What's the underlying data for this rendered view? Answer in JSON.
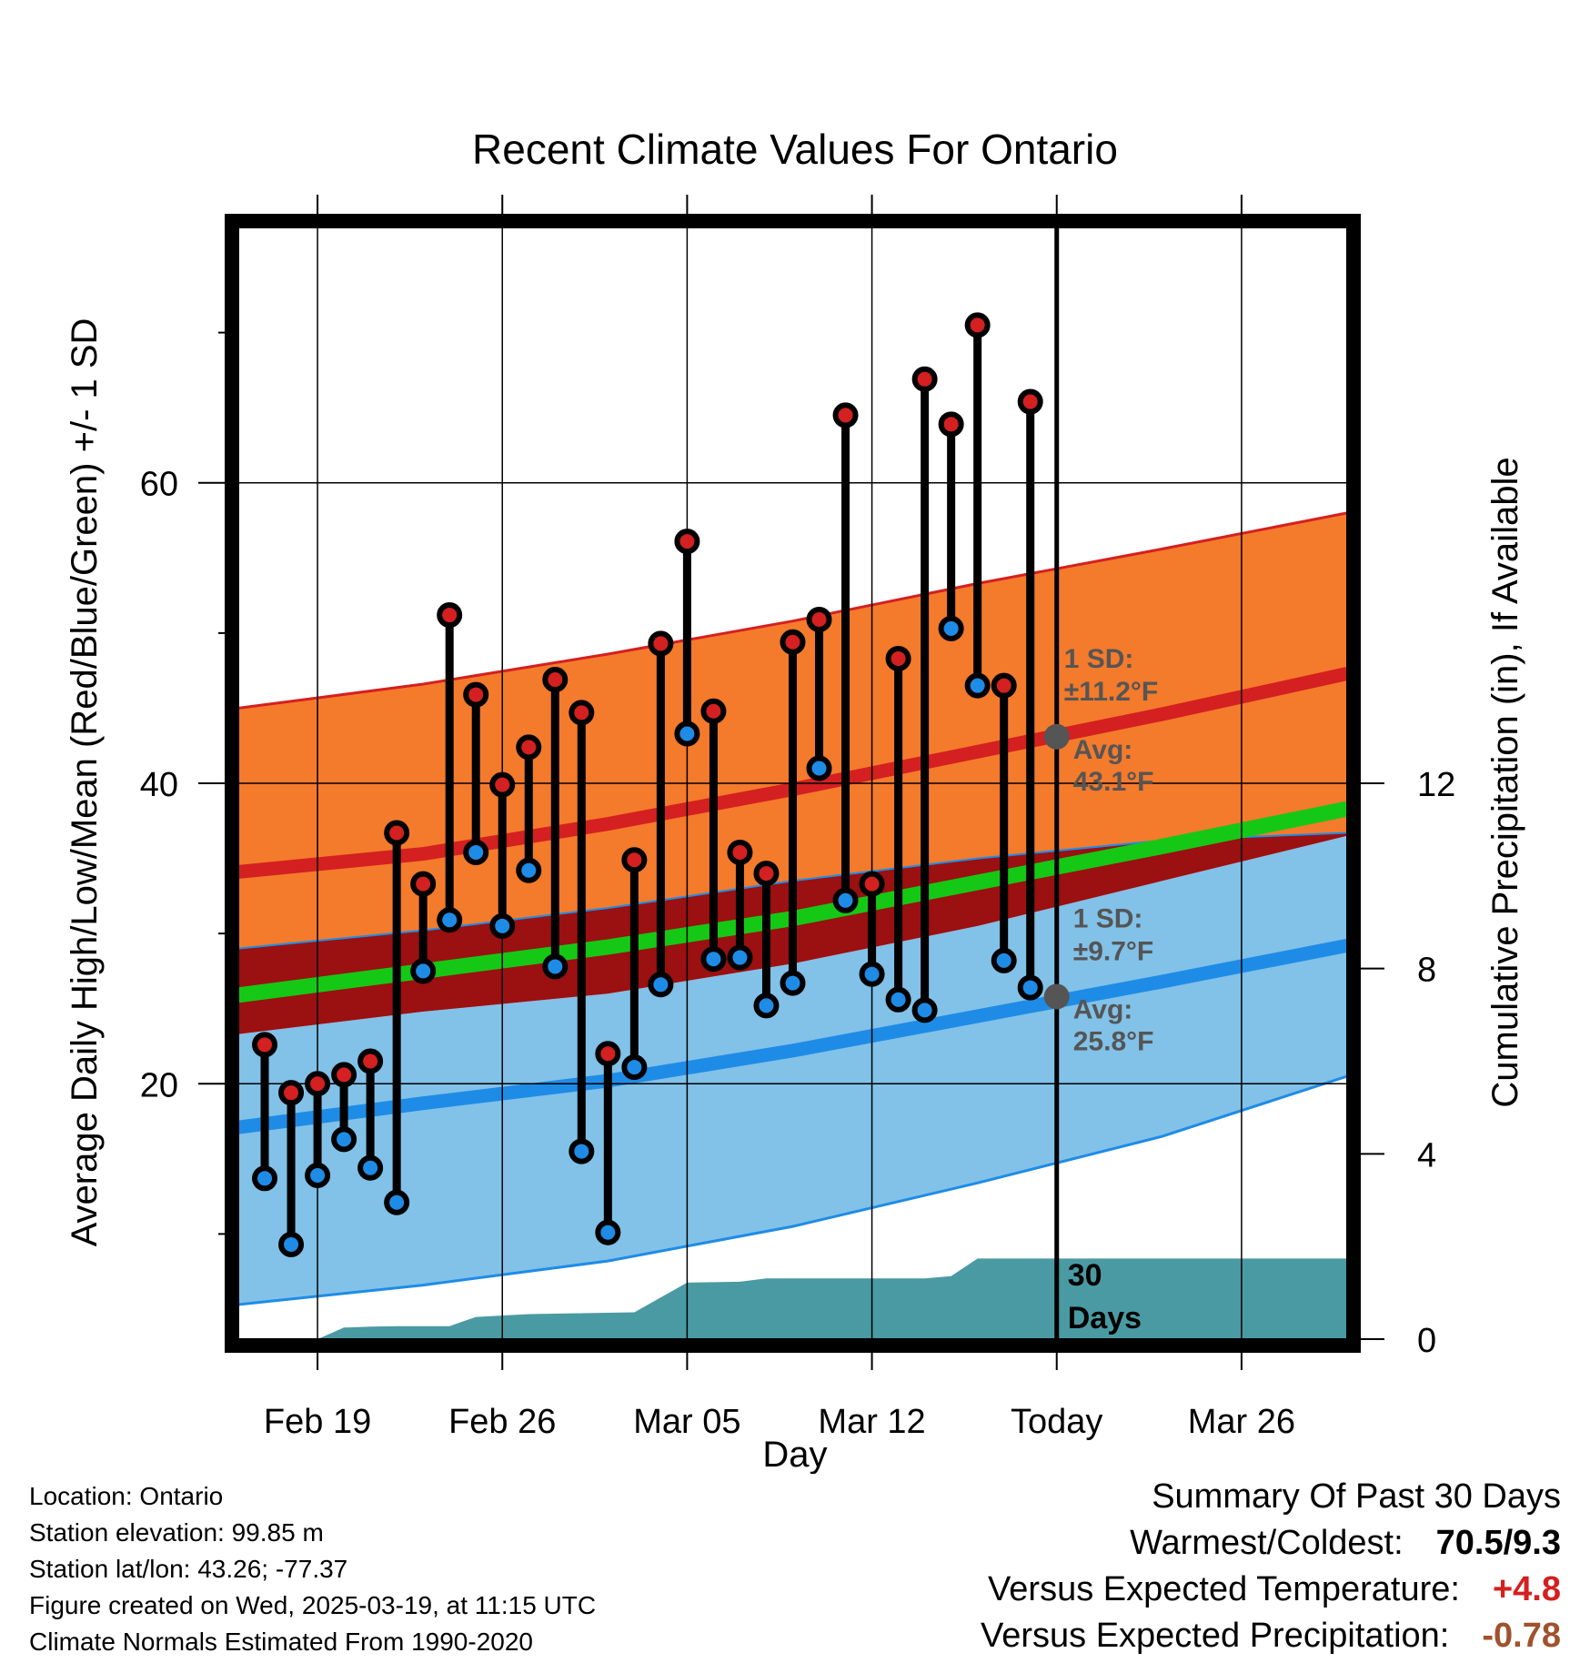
{
  "title": "Recent Climate Values For Ontario",
  "chart_data": {
    "type": "line",
    "title": "Recent Climate Values For Ontario",
    "xlabel": "Day",
    "ylabel": "Average Daily High/Low/Mean (Red/Blue/Green) +/- 1 SD",
    "y2label": "Cumulative Precipitation (in), If Available",
    "x_range": [
      "2025-02-16",
      "2025-03-30"
    ],
    "ylim": [
      3,
      77
    ],
    "y2lim": [
      0,
      24
    ],
    "x_tick_labels": [
      "Feb 19",
      "Feb 26",
      "Mar 05",
      "Mar 12",
      "Today",
      "Mar 26"
    ],
    "x_tick_dates": [
      "2025-02-19",
      "2025-02-26",
      "2025-03-05",
      "2025-03-12",
      "2025-03-19",
      "2025-03-26"
    ],
    "y_ticks": [
      20,
      40,
      60
    ],
    "y_minor_ticks": [
      10,
      30,
      50,
      70
    ],
    "y2_ticks": [
      0,
      4,
      8,
      12
    ],
    "grid": true,
    "today": "2025-03-19",
    "normals": {
      "dates": [
        "2025-02-16",
        "2025-02-23",
        "2025-03-02",
        "2025-03-09",
        "2025-03-16",
        "2025-03-23",
        "2025-03-30"
      ],
      "high_mean": [
        34.1,
        35.3,
        37.3,
        39.6,
        42.1,
        44.6,
        47.3
      ],
      "high_upper": [
        45.0,
        46.6,
        48.6,
        50.8,
        53.3,
        55.6,
        58.0
      ],
      "high_lower": [
        29.0,
        30.2,
        31.7,
        33.5,
        35.0,
        36.2,
        36.7
      ],
      "mean": [
        25.9,
        27.5,
        29.1,
        31.0,
        33.4,
        35.8,
        38.3
      ],
      "mean_band_upper": [
        29.0,
        30.2,
        31.7,
        33.5,
        35.0,
        36.2,
        36.7
      ],
      "mean_band_lower": [
        23.3,
        24.8,
        26.0,
        28.0,
        30.5,
        33.5,
        36.5
      ],
      "low_mean": [
        17.1,
        18.7,
        20.2,
        22.2,
        24.5,
        26.8,
        29.2
      ],
      "low_upper": [
        23.3,
        24.8,
        26.0,
        28.0,
        30.5,
        33.5,
        36.5
      ],
      "low_lower": [
        5.3,
        6.6,
        8.2,
        10.5,
        13.4,
        16.5,
        20.5
      ]
    },
    "series": [
      {
        "name": "High",
        "color": "#d42020",
        "dates": [
          "2025-02-17",
          "2025-02-18",
          "2025-02-19",
          "2025-02-20",
          "2025-02-21",
          "2025-02-22",
          "2025-02-23",
          "2025-02-24",
          "2025-02-25",
          "2025-02-26",
          "2025-02-27",
          "2025-02-28",
          "2025-03-01",
          "2025-03-02",
          "2025-03-03",
          "2025-03-04",
          "2025-03-05",
          "2025-03-06",
          "2025-03-07",
          "2025-03-08",
          "2025-03-09",
          "2025-03-10",
          "2025-03-11",
          "2025-03-12",
          "2025-03-13",
          "2025-03-14",
          "2025-03-15",
          "2025-03-16",
          "2025-03-17",
          "2025-03-18"
        ],
        "values": [
          22.6,
          19.4,
          20.0,
          20.6,
          21.5,
          36.7,
          33.3,
          51.2,
          45.9,
          39.9,
          42.4,
          46.9,
          44.7,
          22.0,
          34.9,
          49.3,
          56.1,
          44.8,
          35.4,
          34.0,
          49.4,
          50.9,
          64.5,
          33.3,
          48.3,
          66.9,
          63.9,
          70.5,
          46.5,
          65.4
        ]
      },
      {
        "name": "Low",
        "color": "#1e8ce6",
        "dates": [
          "2025-02-17",
          "2025-02-18",
          "2025-02-19",
          "2025-02-20",
          "2025-02-21",
          "2025-02-22",
          "2025-02-23",
          "2025-02-24",
          "2025-02-25",
          "2025-02-26",
          "2025-02-27",
          "2025-02-28",
          "2025-03-01",
          "2025-03-02",
          "2025-03-03",
          "2025-03-04",
          "2025-03-05",
          "2025-03-06",
          "2025-03-07",
          "2025-03-08",
          "2025-03-09",
          "2025-03-10",
          "2025-03-11",
          "2025-03-12",
          "2025-03-13",
          "2025-03-14",
          "2025-03-15",
          "2025-03-16",
          "2025-03-17",
          "2025-03-18"
        ],
        "values": [
          13.7,
          9.3,
          13.9,
          16.3,
          14.4,
          12.1,
          27.5,
          30.9,
          35.4,
          30.5,
          34.2,
          27.8,
          15.5,
          10.1,
          21.1,
          26.6,
          43.3,
          28.3,
          28.4,
          25.2,
          26.7,
          41.0,
          32.2,
          27.3,
          25.6,
          24.9,
          50.3,
          46.5,
          28.2,
          26.4
        ]
      },
      {
        "name": "Cumulative Precipitation",
        "color": "#4a9aa3",
        "dates": [
          "2025-02-16",
          "2025-02-19",
          "2025-02-20",
          "2025-02-21",
          "2025-02-22",
          "2025-02-24",
          "2025-02-25",
          "2025-02-27",
          "2025-03-01",
          "2025-03-03",
          "2025-03-05",
          "2025-03-07",
          "2025-03-08",
          "2025-03-09",
          "2025-03-14",
          "2025-03-15",
          "2025-03-16",
          "2025-03-19",
          "2025-03-30"
        ],
        "values": [
          0.0,
          0.0,
          0.25,
          0.27,
          0.28,
          0.28,
          0.48,
          0.54,
          0.56,
          0.58,
          1.22,
          1.24,
          1.31,
          1.31,
          1.31,
          1.36,
          1.74,
          1.74,
          1.74
        ]
      }
    ],
    "annotations": {
      "high_sd": "1 SD:",
      "high_sd_value": "±11.2°F",
      "high_avg": "Avg:",
      "high_avg_value": "43.1°F",
      "low_sd": "1 SD:",
      "low_sd_value": "±9.7°F",
      "low_avg": "Avg:",
      "low_avg_value": "25.8°F",
      "days_line1": "30",
      "days_line2": "Days"
    },
    "colors": {
      "high_band": "#f47a2c",
      "high_line": "#d42020",
      "mean_band": "#9b1010",
      "mean_line": "#15c815",
      "low_band": "#82c1e8",
      "low_line": "#1e8ce6",
      "precip": "#4a9aa3",
      "avg_dot": "#555555"
    }
  },
  "info": {
    "location": "Location: Ontario",
    "elevation": "Station elevation: 99.85 m",
    "latlon": "Station lat/lon: 43.26; -77.37",
    "created": "Figure created on Wed, 2025-03-19, at 11:15 UTC",
    "normals": "Climate Normals Estimated From 1990-2020"
  },
  "summary": {
    "heading": "Summary Of Past 30 Days",
    "warmest_label": "Warmest/Coldest:",
    "warmest_value": "70.5/9.3",
    "temp_label": "Versus Expected Temperature:",
    "temp_value": "+4.8",
    "temp_color": "#d42020",
    "precip_label": "Versus Expected Precipitation:",
    "precip_value": "-0.78",
    "precip_color": "#a0522d"
  }
}
